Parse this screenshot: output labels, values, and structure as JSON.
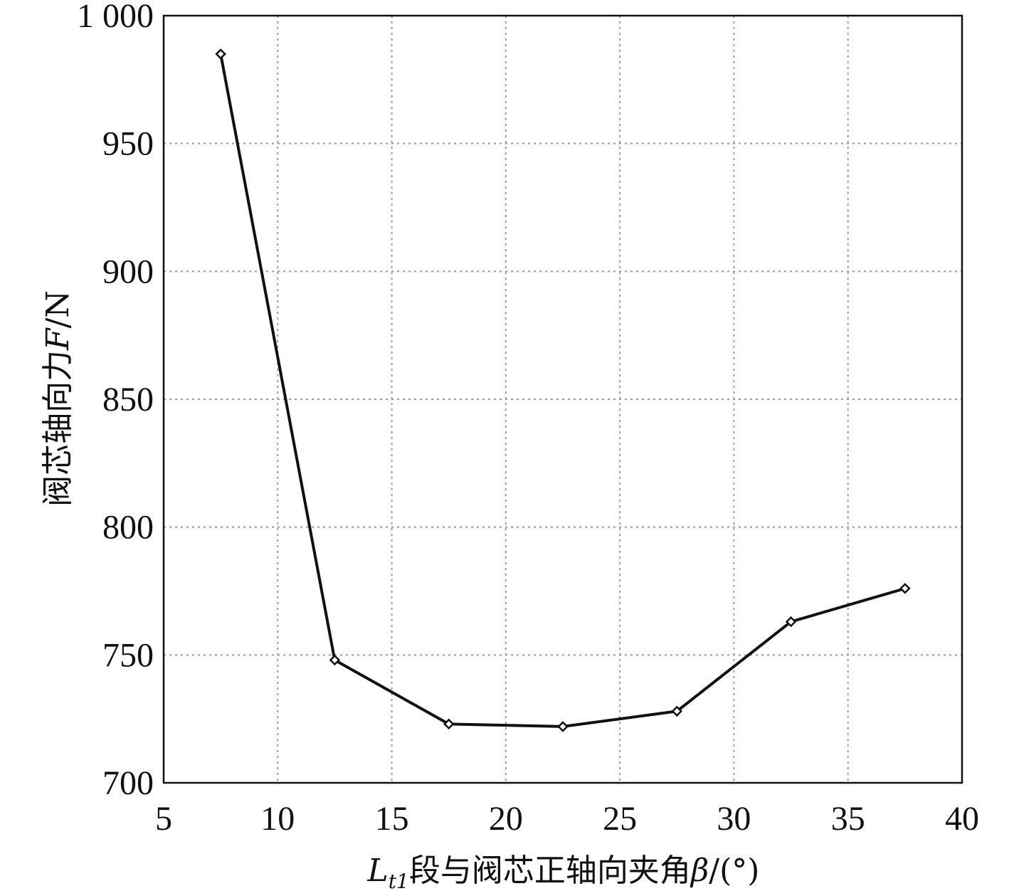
{
  "chart_data": {
    "type": "line",
    "xlabel_main": "L",
    "xlabel_sub": "t1",
    "xlabel_text": "段与阀芯正轴向夹角",
    "xlabel_symbol": "β",
    "xlabel_unit": "/(°)",
    "ylabel_text": "阀芯轴向力",
    "ylabel_symbol": "F",
    "ylabel_unit": "/N",
    "xlim": [
      5,
      40
    ],
    "ylim": [
      700,
      1000
    ],
    "x_ticks": [
      5,
      10,
      15,
      20,
      25,
      30,
      35,
      40
    ],
    "y_ticks": [
      700,
      750,
      800,
      850,
      900,
      950,
      1000
    ],
    "y_tick_labels": [
      "700",
      "750",
      "800",
      "850",
      "900",
      "950",
      "1 000"
    ],
    "grid": true,
    "series": [
      {
        "x": [
          7.5,
          12.5,
          17.5,
          22.5,
          27.5,
          32.5,
          37.5
        ],
        "y": [
          985,
          748,
          723,
          722,
          728,
          763,
          776
        ]
      }
    ]
  }
}
